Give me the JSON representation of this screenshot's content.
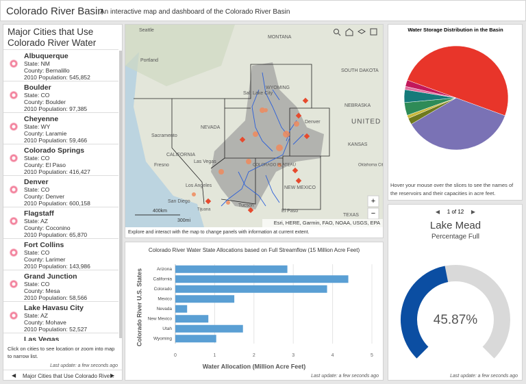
{
  "header": {
    "title": "Colorado River Basin",
    "subtitle": "An interactive map and dashboard of the Colorado River Basin"
  },
  "city_list": {
    "title": "Major Cities that Use Colorado River Water",
    "cities": [
      {
        "name": "Albuquerque",
        "state": "State: NM",
        "county": "County: Bernalillo",
        "population": "2010 Population: 545,852"
      },
      {
        "name": "Boulder",
        "state": "State: CO",
        "county": "County: Boulder",
        "population": "2010 Population: 97,385"
      },
      {
        "name": "Cheyenne",
        "state": "State: WY",
        "county": "County: Laramie",
        "population": "2010 Population: 59,466"
      },
      {
        "name": "Colorado Springs",
        "state": "State: CO",
        "county": "County: El Paso",
        "population": "2010 Population: 416,427"
      },
      {
        "name": "Denver",
        "state": "State: CO",
        "county": "County: Denver",
        "population": "2010 Population: 600,158"
      },
      {
        "name": "Flagstaff",
        "state": "State: AZ",
        "county": "County: Coconino",
        "population": "2010 Population: 65,870"
      },
      {
        "name": "Fort Collins",
        "state": "State: CO",
        "county": "County: Larimer",
        "population": "2010 Population: 143,986"
      },
      {
        "name": "Grand Junction",
        "state": "State: CO",
        "county": "County: Mesa",
        "population": "2010 Population: 58,566"
      },
      {
        "name": "Lake Havasu City",
        "state": "State: AZ",
        "county": "County: Mohave",
        "population": "2010 Population: 52,527"
      },
      {
        "name": "Las Vegas"
      }
    ],
    "note": "Click on cities to see location or zoom into map to narrow list.",
    "last_update": "Last update: a few seconds ago",
    "tab": "Major Cities that Use Colorado Rive..."
  },
  "map": {
    "labels": [
      "Seattle",
      "MONTANA",
      "Portland",
      "WYOMING",
      "SOUTH DAKOTA",
      "NEBRASKA",
      "UNITED STATES",
      "Salt Lake City",
      "Denver",
      "NEVADA",
      "Sacramento",
      "CALIFORNIA",
      "Fresno",
      "Las Vegas",
      "KANSAS",
      "COLORADO PLATEAU",
      "NEW MEXICO",
      "Oklahoma City",
      "Los Angeles",
      "San Diego",
      "Tijuana",
      "Tucson",
      "El Paso",
      "TEXAS"
    ],
    "scale_km": "400km",
    "scale_mi": "300mi",
    "attribution": "Esri, HERE, Garmin, FAO, NOAA, USGS, EPA",
    "caption": "Explore and interact with the map to change panels with information at current extent."
  },
  "chart_data": [
    {
      "type": "bar",
      "title": "Colorado River Water State Allocations based on Full Streamflow (15 Million Acre Feet)",
      "categories": [
        "Arizona",
        "California",
        "Colorado",
        "Mexico",
        "Nevada",
        "New Mexico",
        "Utah",
        "Wyoming"
      ],
      "values": [
        2.85,
        4.4,
        3.86,
        1.5,
        0.3,
        0.84,
        1.72,
        1.04
      ],
      "color": "#5a9fd4",
      "xlim": [
        0,
        5
      ],
      "xticks": [
        0,
        1,
        2,
        3,
        4,
        5
      ],
      "grid": true,
      "x_label": "Water Allocation (Million Acre Feet)",
      "y_label": "Colorado River U.S. States",
      "footer": "Last update: a few seconds ago"
    },
    {
      "type": "pie",
      "title": "Water Storage Distribution in the Basin",
      "categories": [
        null,
        null,
        null,
        null,
        null,
        null,
        null,
        null
      ],
      "values": [
        50,
        36,
        2,
        1,
        4,
        4,
        1,
        2
      ],
      "colors": [
        "#e8352a",
        "#7a72b5",
        "#6f7a1e",
        "#c8b83a",
        "#2e8b57",
        "#157a7a",
        "#e070a0",
        "#c2185b"
      ],
      "caption": "Hover your mouse over the slices to see the names of the reservoirs and their capacities in acre feet."
    },
    {
      "type": "gauge",
      "pager": "1 of 12",
      "title": "Lake Mead",
      "subtitle": "Percentage Full",
      "value": 45.87,
      "value_label": "45.87%",
      "ylim": [
        0,
        100
      ],
      "color": "#0b4ea2",
      "footer": "Last update: a few seconds ago"
    }
  ]
}
